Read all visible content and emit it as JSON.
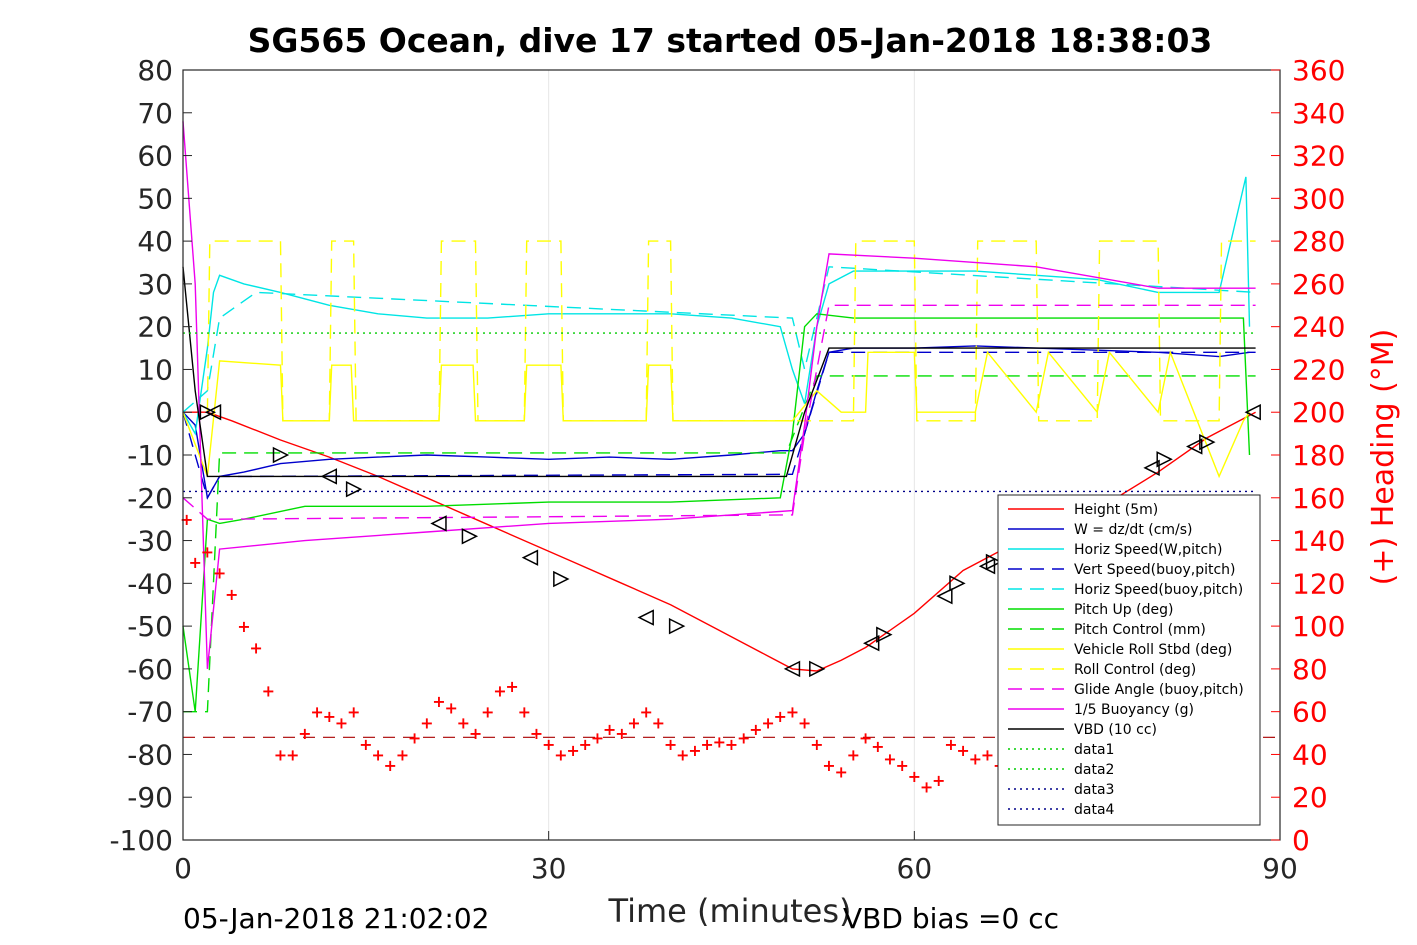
{
  "chart_data": {
    "type": "line",
    "title": "SG565 Ocean, dive 17 started 05-Jan-2018 18:38:03",
    "xlabel": "Time (minutes)",
    "ylabel_right": "(+) Heading (°M)",
    "xlim": [
      0,
      90
    ],
    "ylim": [
      -100,
      80
    ],
    "ylim_right": [
      0,
      360
    ],
    "xticks": [
      0,
      30,
      60,
      90
    ],
    "yticks": [
      80,
      70,
      60,
      50,
      40,
      30,
      20,
      10,
      0,
      -10,
      -20,
      -30,
      -40,
      -50,
      -60,
      -70,
      -80,
      -90,
      -100
    ],
    "yticks_right": [
      360,
      340,
      320,
      300,
      280,
      260,
      240,
      220,
      200,
      180,
      160,
      140,
      120,
      100,
      80,
      60,
      40,
      20,
      0
    ],
    "grid": true,
    "legend_position": "lower-right",
    "legend": [
      {
        "label": "Height (5m)",
        "color": "#ff0000",
        "style": "solid"
      },
      {
        "label": "W = dz/dt (cm/s)",
        "color": "#0000cc",
        "style": "solid"
      },
      {
        "label": "Horiz Speed(W,pitch)",
        "color": "#00e5e5",
        "style": "solid"
      },
      {
        "label": "Vert Speed(buoy,pitch)",
        "color": "#0000cc",
        "style": "dashed"
      },
      {
        "label": "Horiz Speed(buoy,pitch)",
        "color": "#00e5e5",
        "style": "dashed"
      },
      {
        "label": "Pitch Up (deg)",
        "color": "#00dd00",
        "style": "solid"
      },
      {
        "label": "Pitch Control (mm)",
        "color": "#00dd00",
        "style": "dashed"
      },
      {
        "label": "Vehicle Roll Stbd (deg)",
        "color": "#ffff00",
        "style": "solid"
      },
      {
        "label": "Roll Control (deg)",
        "color": "#ffff00",
        "style": "dashed"
      },
      {
        "label": "Glide Angle (buoy,pitch)",
        "color": "#ee00ee",
        "style": "dashed"
      },
      {
        "label": "1/5 Buoyancy (g)",
        "color": "#ee00ee",
        "style": "solid"
      },
      {
        "label": "VBD (10 cc)",
        "color": "#000000",
        "style": "solid"
      },
      {
        "label": "data1",
        "color": "#00cc00",
        "style": "dotted"
      },
      {
        "label": "data2",
        "color": "#00cc00",
        "style": "dotted"
      },
      {
        "label": "data3",
        "color": "#000088",
        "style": "dotted"
      },
      {
        "label": "data4",
        "color": "#000088",
        "style": "dotted"
      }
    ],
    "series": [
      {
        "name": "Height (5m)",
        "color": "#ff0000",
        "style": "solid",
        "x": [
          0,
          2,
          4,
          8,
          12,
          16,
          20,
          24,
          28,
          32,
          36,
          40,
          44,
          48,
          50,
          52,
          54,
          56,
          60,
          64,
          68,
          72,
          76,
          80,
          84,
          88
        ],
        "y": [
          0,
          0,
          -2,
          -6.5,
          -10.5,
          -15,
          -20,
          -25,
          -30,
          -35,
          -40,
          -45,
          -51,
          -57,
          -60,
          -60.5,
          -58,
          -55,
          -47,
          -37,
          -31,
          -26,
          -21,
          -14,
          -6,
          0
        ]
      },
      {
        "name": "W = dz/dt (cm/s)",
        "color": "#0000cc",
        "style": "solid",
        "x": [
          0,
          1,
          2,
          3,
          5,
          8,
          12,
          16,
          20,
          25,
          30,
          35,
          40,
          45,
          49,
          50,
          51,
          52,
          53,
          55,
          60,
          65,
          70,
          75,
          80,
          85,
          87.5
        ],
        "y": [
          0,
          -3,
          -20,
          -15,
          -14,
          -12,
          -11,
          -10.5,
          -10,
          -10.5,
          -11,
          -10.5,
          -11,
          -10,
          -9,
          -9,
          -5,
          5,
          14,
          15,
          15,
          15.5,
          15,
          14.5,
          14,
          13,
          14
        ]
      },
      {
        "name": "Horiz Speed(W,pitch)",
        "color": "#00e5e5",
        "style": "solid",
        "x": [
          0,
          1,
          2,
          2.5,
          3,
          5,
          8,
          12,
          16,
          20,
          25,
          30,
          35,
          40,
          45,
          49,
          50,
          51,
          52,
          53,
          55,
          60,
          65,
          70,
          75,
          80,
          85,
          87.2,
          87.5
        ],
        "y": [
          0,
          -5,
          15,
          28,
          32,
          30,
          28,
          25,
          23,
          22,
          22,
          23,
          23,
          23,
          22,
          20,
          10,
          2,
          20,
          30,
          33,
          33,
          33,
          32,
          31,
          28,
          28,
          55,
          20
        ]
      },
      {
        "name": "Vert Speed(buoy,pitch)",
        "color": "#0000cc",
        "style": "dashed",
        "x": [
          0,
          2,
          3,
          6,
          50,
          51,
          53,
          88
        ],
        "y": [
          0,
          -20,
          -15,
          -15,
          -14.5,
          -5,
          14,
          14
        ]
      },
      {
        "name": "Horiz Speed(buoy,pitch)",
        "color": "#00e5e5",
        "style": "dashed",
        "x": [
          0,
          2,
          3,
          6,
          50,
          51,
          53,
          88
        ],
        "y": [
          0,
          5,
          22,
          28,
          22,
          10,
          34,
          28
        ]
      },
      {
        "name": "Pitch Up (deg)",
        "color": "#00dd00",
        "style": "solid",
        "x": [
          0,
          1,
          2,
          3,
          5,
          10,
          20,
          30,
          40,
          49,
          50,
          51,
          52,
          55,
          60,
          70,
          80,
          87,
          87.5
        ],
        "y": [
          -50,
          -70,
          -25,
          -26,
          -25,
          -22,
          -22,
          -21,
          -21,
          -20,
          -5,
          20,
          23,
          22,
          22,
          22,
          22,
          22,
          -10
        ]
      },
      {
        "name": "Pitch Control (mm)",
        "color": "#00dd00",
        "style": "dashed",
        "x": [
          0,
          2,
          3,
          49.5,
          52,
          88
        ],
        "y": [
          -70,
          -70,
          -9.5,
          -9.5,
          8.5,
          8.5
        ]
      },
      {
        "name": "Vehicle Roll Stbd (deg)",
        "color": "#ffff00",
        "style": "solid",
        "x": [
          0,
          2,
          3,
          8,
          8.2,
          12,
          12.2,
          13.8,
          14,
          21,
          21.2,
          23.8,
          24,
          28,
          28.2,
          31,
          31.2,
          38,
          38.2,
          40,
          40.2,
          50,
          52,
          54,
          55,
          56,
          56.2,
          60,
          60.2,
          65,
          66,
          70,
          71,
          75,
          76,
          80,
          81,
          85,
          87,
          87.5
        ],
        "y": [
          0,
          -15,
          12,
          11,
          -2,
          -2,
          11,
          11,
          -2,
          -2,
          11,
          11,
          -2,
          -2,
          11,
          11,
          -2,
          -2,
          11,
          11,
          -2,
          -2,
          5,
          0,
          0,
          0,
          14,
          14,
          0,
          0,
          14,
          0,
          14,
          0,
          14,
          0,
          14,
          -15,
          -2,
          0
        ]
      },
      {
        "name": "Roll Control (deg)",
        "color": "#ffff00",
        "style": "dashed",
        "x": [
          2,
          2.2,
          8,
          8.2,
          12,
          12.2,
          14,
          14.2,
          21,
          21.2,
          24,
          24.2,
          28,
          28.2,
          31,
          31.2,
          38,
          38.2,
          40,
          40.2,
          50,
          55,
          55.2,
          60,
          60.2,
          65,
          65.2,
          70,
          70.2,
          75,
          75.2,
          80,
          80.2,
          85,
          85.2,
          88
        ],
        "y": [
          0,
          40,
          40,
          -2,
          -2,
          40,
          40,
          -2,
          -2,
          40,
          40,
          -2,
          -2,
          40,
          40,
          -2,
          -2,
          40,
          40,
          -2,
          -2,
          -2,
          40,
          40,
          -2,
          -2,
          40,
          40,
          -2,
          -2,
          40,
          40,
          -2,
          -2,
          40,
          40
        ]
      },
      {
        "name": "Glide Angle (buoy,pitch)",
        "color": "#ee00ee",
        "style": "dashed",
        "x": [
          0,
          2,
          3,
          50,
          51,
          53,
          88
        ],
        "y": [
          -20,
          -25,
          -25,
          -24,
          -5,
          25,
          25
        ]
      },
      {
        "name": "1/5 Buoyancy (g)",
        "color": "#ee00ee",
        "style": "solid",
        "x": [
          0,
          1,
          2,
          3,
          10,
          20,
          30,
          40,
          50,
          51,
          52,
          53,
          60,
          70,
          80,
          88
        ],
        "y": [
          68,
          30,
          -60,
          -32,
          -30,
          -28,
          -26,
          -25,
          -23,
          -3,
          20,
          37,
          36,
          34,
          29,
          29
        ]
      },
      {
        "name": "VBD (10 cc)",
        "color": "#000000",
        "style": "solid",
        "x": [
          0,
          1,
          2,
          3,
          49.5,
          51,
          53,
          88
        ],
        "y": [
          34,
          5,
          -15,
          -15,
          -15,
          0,
          15,
          15
        ]
      },
      {
        "name": "data2",
        "color": "#00cc00",
        "style": "dotted",
        "x": [
          0,
          88
        ],
        "y": [
          18.5,
          18.5
        ]
      },
      {
        "name": "data4",
        "color": "#000088",
        "style": "dotted",
        "x": [
          0,
          88
        ],
        "y": [
          -18.5,
          -18.5
        ]
      }
    ],
    "heading_series": {
      "axis": "right",
      "color": "#ff0000",
      "marker": "+",
      "x": [
        0.3,
        1,
        2,
        3,
        4,
        5,
        6,
        7,
        8,
        9,
        10,
        11,
        12,
        13,
        14,
        15,
        16,
        17,
        18,
        19,
        20,
        21,
        22,
        23,
        24,
        25,
        26,
        27,
        28,
        29,
        30,
        31,
        32,
        33,
        34,
        35,
        36,
        37,
        38,
        39,
        40,
        41,
        42,
        43,
        44,
        45,
        46,
        47,
        48,
        49,
        50,
        51,
        52,
        53,
        54,
        55,
        56,
        57,
        58,
        59,
        60,
        61,
        62,
        63,
        64,
        65,
        66,
        67
      ],
      "y": [
        150,
        130,
        135,
        125,
        115,
        100,
        90,
        70,
        40,
        40,
        50,
        60,
        58,
        55,
        60,
        45,
        40,
        35,
        40,
        48,
        55,
        65,
        62,
        55,
        50,
        60,
        70,
        72,
        60,
        50,
        45,
        40,
        42,
        45,
        48,
        52,
        50,
        55,
        60,
        55,
        45,
        40,
        42,
        45,
        46,
        45,
        48,
        52,
        55,
        58,
        60,
        55,
        45,
        35,
        32,
        40,
        48,
        44,
        38,
        35,
        30,
        25,
        28,
        45,
        42,
        38,
        40,
        35
      ]
    },
    "dive_markers": {
      "x": [
        2,
        2.5,
        8,
        12,
        14,
        21,
        23.5,
        28.5,
        31,
        38,
        40.5,
        50,
        52,
        56.5,
        57.5,
        62.5,
        63.5,
        66,
        66.5,
        79.5,
        80.5,
        83,
        84,
        87.8
      ],
      "y": [
        0,
        0,
        -10,
        -15,
        -18,
        -26,
        -29,
        -34,
        -39,
        -48,
        -50,
        -60,
        -60,
        -54,
        -52,
        -43,
        -40,
        -36,
        -35,
        -13,
        -11,
        -8,
        -7,
        0
      ]
    },
    "ref_line_right": {
      "value": 48,
      "color": "#aa0000",
      "style": "dashed"
    }
  },
  "footer": {
    "timestamp": "05-Jan-2018 21:02:02",
    "vbd_bias": "VBD bias =0 cc"
  }
}
